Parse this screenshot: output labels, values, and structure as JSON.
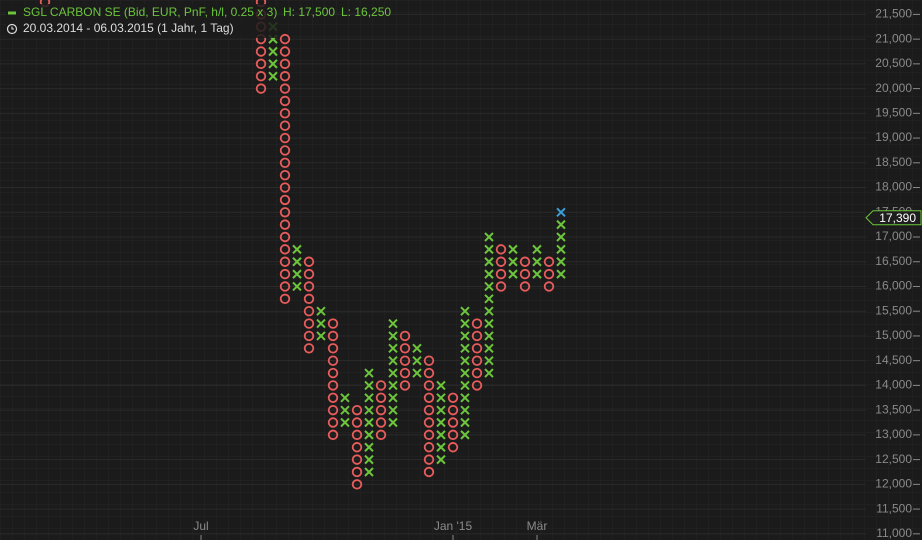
{
  "chart_data": {
    "type": "pnf",
    "title": "SGL CARBON SE (Bid, EUR, PnF, h/l, 0.25 x 3)",
    "high_label": "H: 17,500",
    "low_label": "L: 16,250",
    "period": "20.03.2014 - 06.03.2015 (1 Jahr, 1 Tag)",
    "box_size": 250,
    "x_color": "#6cc53c",
    "o_color": "#e85c5c",
    "last_color": "#3a9fd8",
    "columns": [
      {
        "kind": "O",
        "low": 21750,
        "high": 21750
      },
      {
        "kind": "O",
        "low": 20000,
        "high": 21750
      },
      {
        "kind": "X",
        "low": 20250,
        "high": 21250
      },
      {
        "kind": "O",
        "low": 15750,
        "high": 21000
      },
      {
        "kind": "X",
        "low": 16000,
        "high": 16750
      },
      {
        "kind": "O",
        "low": 14750,
        "high": 16500
      },
      {
        "kind": "X",
        "low": 15000,
        "high": 15500
      },
      {
        "kind": "O",
        "low": 13000,
        "high": 15250
      },
      {
        "kind": "X",
        "low": 13250,
        "high": 13750
      },
      {
        "kind": "O",
        "low": 12000,
        "high": 13500
      },
      {
        "kind": "X",
        "low": 12250,
        "high": 14250
      },
      {
        "kind": "O",
        "low": 13000,
        "high": 14000
      },
      {
        "kind": "X",
        "low": 13250,
        "high": 15250
      },
      {
        "kind": "O",
        "low": 14000,
        "high": 15000
      },
      {
        "kind": "X",
        "low": 14250,
        "high": 14750
      },
      {
        "kind": "O",
        "low": 12250,
        "high": 14500
      },
      {
        "kind": "X",
        "low": 12500,
        "high": 14000
      },
      {
        "kind": "O",
        "low": 12750,
        "high": 13750
      },
      {
        "kind": "X",
        "low": 13000,
        "high": 15500
      },
      {
        "kind": "O",
        "low": 14000,
        "high": 15250
      },
      {
        "kind": "X",
        "low": 14250,
        "high": 17000
      },
      {
        "kind": "O",
        "low": 16000,
        "high": 16750
      },
      {
        "kind": "X",
        "low": 16250,
        "high": 16750
      },
      {
        "kind": "O",
        "low": 16000,
        "high": 16500
      },
      {
        "kind": "X",
        "low": 16250,
        "high": 16750
      },
      {
        "kind": "O",
        "low": 16000,
        "high": 16500
      },
      {
        "kind": "X",
        "low": 16250,
        "high": 17500
      }
    ],
    "x_labels": [
      "Jul",
      "Jan '15",
      "Mär"
    ],
    "last_price": {
      "value": 17390,
      "label": "17,390"
    },
    "ylim": [
      10875,
      21791
    ],
    "yticks": [
      {
        "value": 11000,
        "label": "11,000"
      },
      {
        "value": 11500,
        "label": "11,500"
      },
      {
        "value": 12000,
        "label": "12,000"
      },
      {
        "value": 12500,
        "label": "12,500"
      },
      {
        "value": 13000,
        "label": "13,000"
      },
      {
        "value": 13500,
        "label": "13,500"
      },
      {
        "value": 14000,
        "label": "14,000"
      },
      {
        "value": 14500,
        "label": "14,500"
      },
      {
        "value": 15000,
        "label": "15,000"
      },
      {
        "value": 15500,
        "label": "15,500"
      },
      {
        "value": 16000,
        "label": "16,000"
      },
      {
        "value": 16500,
        "label": "16,500"
      },
      {
        "value": 17000,
        "label": "17,000"
      },
      {
        "value": 17500,
        "label": "17,500"
      },
      {
        "value": 18000,
        "label": "18,000"
      },
      {
        "value": 18500,
        "label": "18,500"
      },
      {
        "value": 19000,
        "label": "19,000"
      },
      {
        "value": 19500,
        "label": "19,500"
      },
      {
        "value": 20000,
        "label": "20,000"
      },
      {
        "value": 20500,
        "label": "20,500"
      },
      {
        "value": 21000,
        "label": "21,000"
      },
      {
        "value": 21500,
        "label": "21,500"
      }
    ],
    "grid": true
  }
}
